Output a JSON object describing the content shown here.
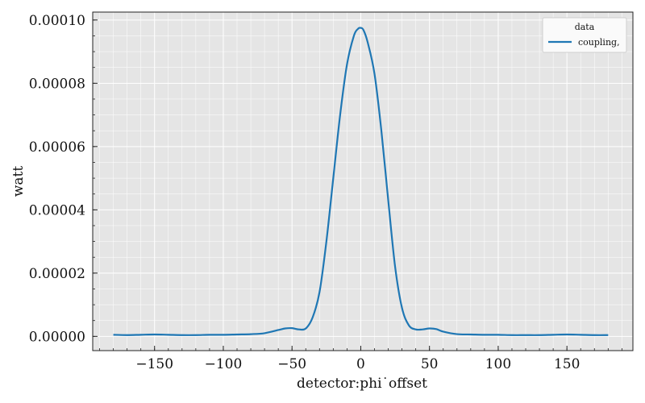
{
  "chart_data": {
    "type": "line",
    "xlabel": "detector:phi˙offset",
    "ylabel": "watt",
    "xlim": [
      -195,
      198
    ],
    "ylim": [
      -4.5e-06,
      0.0001025
    ],
    "xticks": [
      -150,
      -100,
      -50,
      0,
      50,
      100,
      150
    ],
    "xtick_labels": [
      "−150",
      "−100",
      "−50",
      "0",
      "50",
      "100",
      "150"
    ],
    "yticks": [
      0,
      2e-05,
      4e-05,
      6e-05,
      8e-05,
      0.0001
    ],
    "ytick_labels": [
      "0.00000",
      "0.00002",
      "0.00004",
      "0.00006",
      "0.00008",
      "0.00010"
    ],
    "grid": true,
    "legend": {
      "title": "data",
      "placement": "top-right"
    },
    "series": [
      {
        "name": "coupling,",
        "color": "#1f77b4",
        "x": [
          -180,
          -170,
          -160,
          -150,
          -140,
          -130,
          -120,
          -110,
          -100,
          -90,
          -80,
          -70,
          -60,
          -55,
          -50,
          -45,
          -40,
          -35,
          -30,
          -25,
          -20,
          -15,
          -10,
          -5,
          -2,
          0,
          2,
          5,
          10,
          15,
          20,
          25,
          30,
          35,
          40,
          45,
          50,
          55,
          60,
          70,
          80,
          90,
          100,
          110,
          120,
          130,
          140,
          150,
          160,
          170,
          180
        ],
        "y": [
          5e-07,
          4e-07,
          5e-07,
          6e-07,
          5e-07,
          4e-07,
          4e-07,
          5e-07,
          5e-07,
          6e-07,
          7e-07,
          1e-06,
          2e-06,
          2.5e-06,
          2.6e-06,
          2.2e-06,
          2.5e-06,
          6e-06,
          1.4e-05,
          3e-05,
          5e-05,
          7e-05,
          8.6e-05,
          9.5e-05,
          9.72e-05,
          9.75e-05,
          9.68e-05,
          9.3e-05,
          8.3e-05,
          6.5e-05,
          4.3e-05,
          2.2e-05,
          9e-06,
          3.5e-06,
          2.2e-06,
          2.2e-06,
          2.5e-06,
          2.3e-06,
          1.5e-06,
          7e-07,
          6e-07,
          5e-07,
          5e-07,
          4e-07,
          4e-07,
          4e-07,
          5e-07,
          6e-07,
          5e-07,
          4e-07,
          4e-07
        ]
      }
    ]
  }
}
